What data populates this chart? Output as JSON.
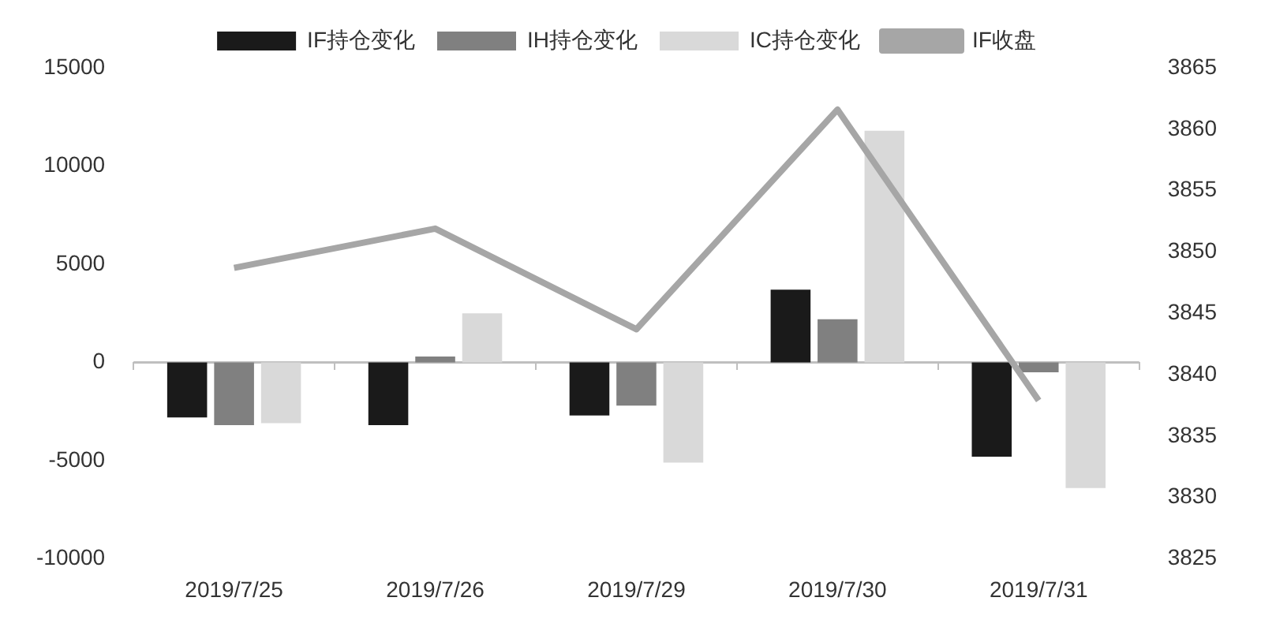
{
  "chart_data": {
    "type": "bar",
    "categories": [
      "2019/7/25",
      "2019/7/26",
      "2019/7/29",
      "2019/7/30",
      "2019/7/31"
    ],
    "series": [
      {
        "name": "IF持仓变化",
        "color": "#1a1a1a",
        "values": [
          -2800,
          -3200,
          -2700,
          3700,
          -4800
        ]
      },
      {
        "name": "IH持仓变化",
        "color": "#808080",
        "values": [
          -3200,
          300,
          -2200,
          2200,
          -500
        ]
      },
      {
        "name": "IC持仓变化",
        "color": "#d9d9d9",
        "values": [
          -3100,
          2500,
          -5100,
          11800,
          -6400
        ]
      },
      {
        "name": "IF收盘",
        "type": "line",
        "axis": "y2",
        "color": "#a6a6a6",
        "values": [
          3848.7,
          3851.9,
          3843.7,
          3861.6,
          3837.9
        ]
      }
    ],
    "ylim": [
      -10000,
      15000
    ],
    "yticks": [
      -10000,
      -5000,
      0,
      5000,
      10000,
      15000
    ],
    "y2lim": [
      3825,
      3865
    ],
    "y2ticks": [
      3825,
      3830,
      3835,
      3840,
      3845,
      3850,
      3855,
      3860,
      3865
    ],
    "ref_lines": [
      {
        "axis": "y",
        "value": 0,
        "color": "#bfbfbf"
      }
    ],
    "grid": false,
    "legend": "top",
    "marker": "none",
    "line_style": "solid"
  }
}
